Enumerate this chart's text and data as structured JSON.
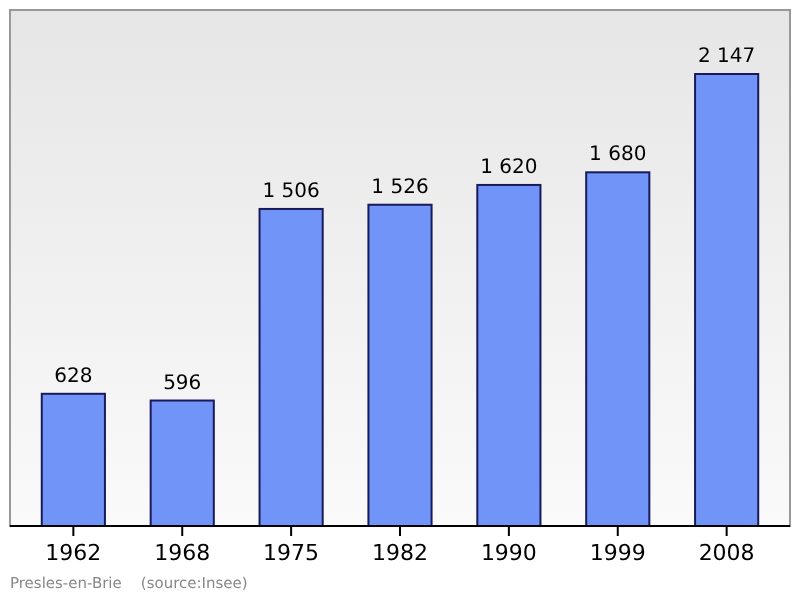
{
  "chart_data": {
    "type": "bar",
    "categories": [
      "1962",
      "1968",
      "1975",
      "1982",
      "1990",
      "1999",
      "2008"
    ],
    "values": [
      628,
      596,
      1506,
      1526,
      1620,
      1680,
      2147
    ],
    "value_labels": [
      "628",
      "596",
      "1 506",
      "1 526",
      "1 620",
      "1 680",
      "2 147"
    ],
    "color": "#7094f8",
    "annotations": [
      "Presles-en-Brie    (source:Insee)"
    ]
  }
}
